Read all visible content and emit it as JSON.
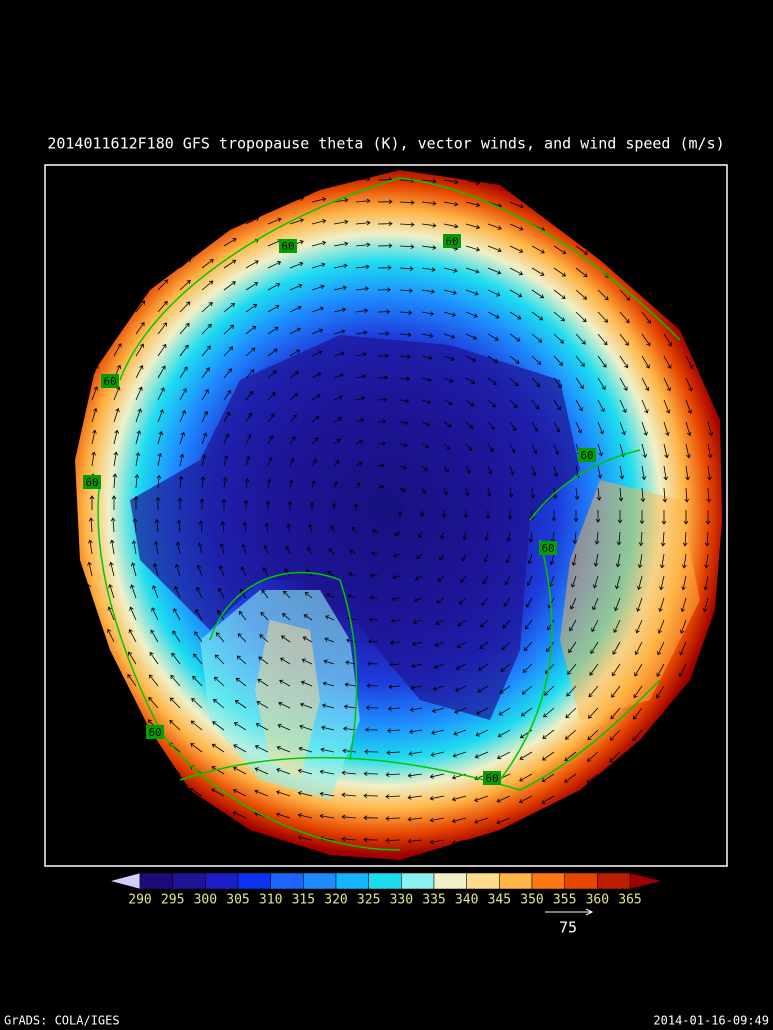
{
  "title": "2014011612F180 GFS tropopause theta (K), vector winds, and wind speed (m/s)",
  "colorbar": {
    "ticks": [
      290,
      295,
      300,
      305,
      310,
      315,
      320,
      325,
      330,
      335,
      340,
      345,
      350,
      355,
      360,
      365
    ],
    "colors": [
      "#1e0a78",
      "#1e1496",
      "#1e1ec8",
      "#0a32f0",
      "#1e64ff",
      "#1e8cff",
      "#14b4ff",
      "#1edcf0",
      "#8cf0f0",
      "#f0f0c8",
      "#ffdc8c",
      "#ffb446",
      "#ff7814",
      "#e64600",
      "#be1e00"
    ],
    "under_color": "#d0d0ff",
    "over_color": "#a00000"
  },
  "reference_vector": 75,
  "contour_labels": [
    "60",
    "60",
    "60",
    "60",
    "60",
    "60",
    "60",
    "60"
  ],
  "footer": {
    "left": "GrADS: COLA/IGES",
    "right": "2014-01-16-09:49"
  }
}
